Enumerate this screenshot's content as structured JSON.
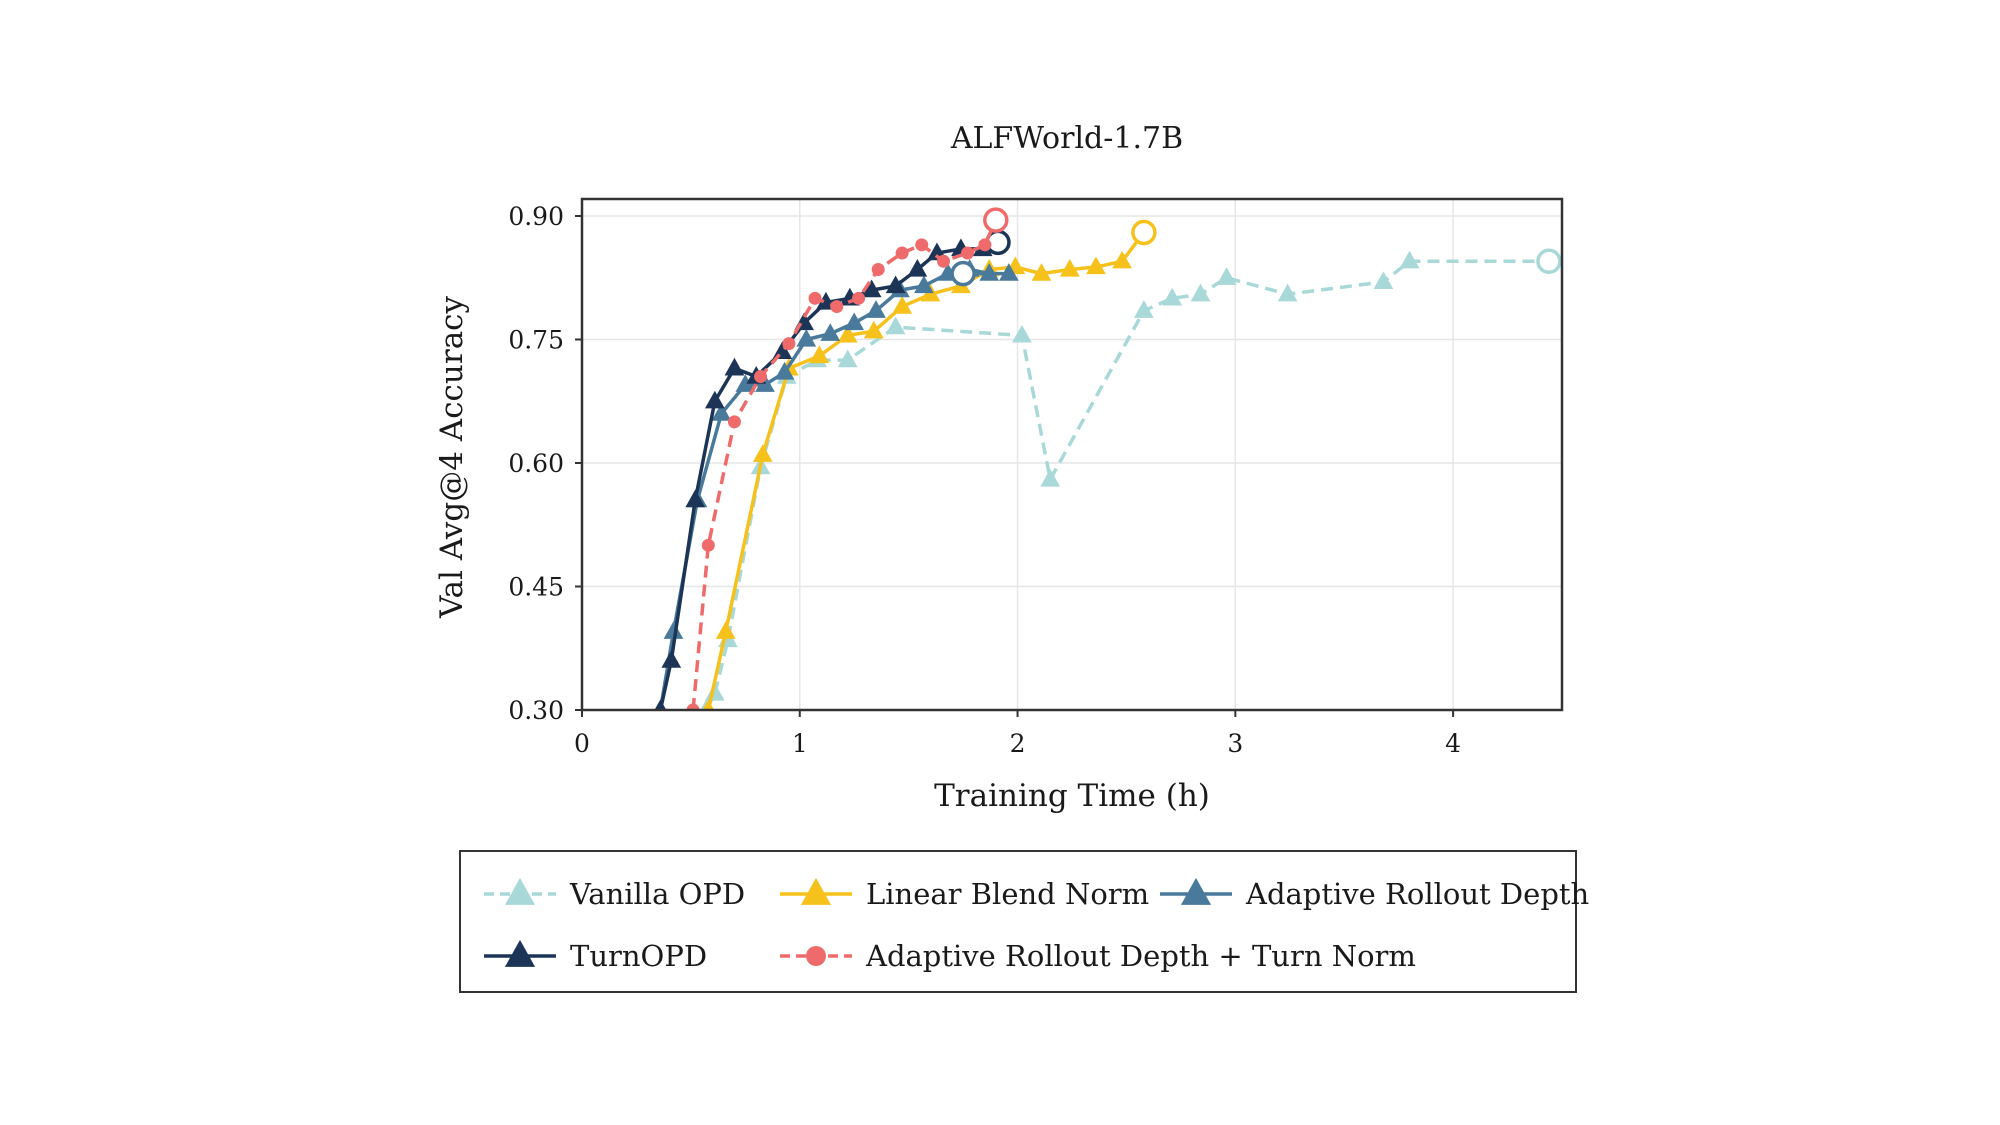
{
  "chart_data": {
    "type": "line",
    "title": "ALFWorld-1.7B",
    "xlabel": "Training Time (h)",
    "ylabel": "Val  Avg@4  Accuracy",
    "xlim": [
      0,
      4.5
    ],
    "ylim": [
      0.3,
      0.91
    ],
    "xticks": [
      0,
      1,
      2,
      3,
      4
    ],
    "yticks": [
      0.3,
      0.45,
      0.6,
      0.75,
      0.9
    ],
    "xtick_labels": [
      "0",
      "1",
      "2",
      "3",
      "4"
    ],
    "ytick_labels": [
      "0.30",
      "0.45",
      "0.60",
      "0.75",
      "0.90"
    ],
    "grid": true,
    "legend_position": "bottom",
    "series": [
      {
        "name": "Vanilla OPD",
        "color": "#a8d8d8",
        "dash": true,
        "marker": "triangle",
        "x": [
          0.57,
          0.61,
          0.67,
          0.82,
          0.94,
          1.08,
          1.22,
          1.44,
          2.02,
          2.15,
          2.58,
          2.71,
          2.84,
          2.96,
          3.24,
          3.68,
          3.8,
          4.44
        ],
        "y": [
          0.3,
          0.32,
          0.385,
          0.595,
          0.705,
          0.725,
          0.725,
          0.765,
          0.755,
          0.58,
          0.785,
          0.8,
          0.805,
          0.825,
          0.805,
          0.82,
          0.845,
          0.845
        ],
        "end_marker": true
      },
      {
        "name": "Linear Blend Norm",
        "color": "#f6c11b",
        "dash": false,
        "marker": "triangle",
        "x": [
          0.58,
          0.66,
          0.83,
          0.95,
          1.09,
          1.22,
          1.34,
          1.47,
          1.6,
          1.74,
          1.87,
          1.99,
          2.11,
          2.24,
          2.36,
          2.48,
          2.58
        ],
        "y": [
          0.3,
          0.395,
          0.61,
          0.715,
          0.73,
          0.755,
          0.76,
          0.79,
          0.805,
          0.815,
          0.835,
          0.838,
          0.83,
          0.835,
          0.838,
          0.845,
          0.88
        ],
        "end_marker": true
      },
      {
        "name": "Adaptive Rollout Depth",
        "color": "#4a7a9b",
        "dash": false,
        "marker": "triangle",
        "x": [
          0.36,
          0.42,
          0.53,
          0.64,
          0.75,
          0.84,
          0.93,
          1.03,
          1.14,
          1.25,
          1.35,
          1.46,
          1.57,
          1.68,
          1.78,
          1.87,
          1.96,
          1.75
        ],
        "y": [
          0.3,
          0.395,
          0.555,
          0.66,
          0.695,
          0.695,
          0.71,
          0.75,
          0.757,
          0.77,
          0.785,
          0.81,
          0.815,
          0.83,
          0.835,
          0.83,
          0.83,
          0.83
        ],
        "end_marker": true
      },
      {
        "name": "TurnOPD",
        "color": "#1c3557",
        "dash": false,
        "marker": "triangle",
        "x": [
          0.36,
          0.41,
          0.52,
          0.61,
          0.7,
          0.8,
          0.92,
          1.02,
          1.12,
          1.23,
          1.33,
          1.44,
          1.54,
          1.63,
          1.74,
          1.84,
          1.91
        ],
        "y": [
          0.3,
          0.36,
          0.555,
          0.675,
          0.715,
          0.705,
          0.735,
          0.77,
          0.795,
          0.8,
          0.81,
          0.815,
          0.835,
          0.855,
          0.86,
          0.86,
          0.868
        ],
        "end_marker": true
      },
      {
        "name": "Adaptive Rollout Depth + Turn Norm",
        "color": "#ef6b6b",
        "dash": true,
        "marker": "circle",
        "x": [
          0.51,
          0.58,
          0.7,
          0.82,
          0.95,
          1.07,
          1.17,
          1.27,
          1.36,
          1.47,
          1.56,
          1.66,
          1.77,
          1.85,
          1.9
        ],
        "y": [
          0.3,
          0.5,
          0.65,
          0.705,
          0.745,
          0.8,
          0.79,
          0.8,
          0.835,
          0.855,
          0.865,
          0.845,
          0.855,
          0.865,
          0.895
        ],
        "end_marker": true
      }
    ]
  }
}
